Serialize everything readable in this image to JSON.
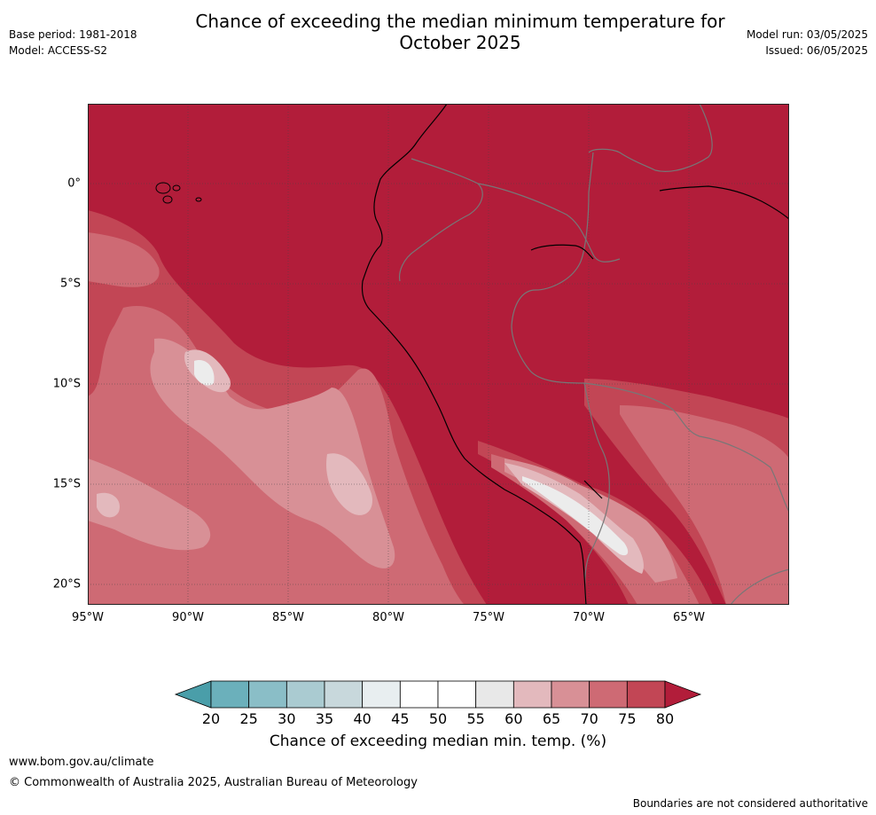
{
  "header": {
    "title_line1": "Chance of exceeding the median minimum temperature for",
    "title_line2": "October 2025",
    "base_period": "Base period: 1981-2018",
    "model": "Model: ACCESS-S2",
    "model_run": "Model run: 03/05/2025",
    "issued": "Issued: 06/05/2025"
  },
  "map": {
    "lat_ticks": [
      "0°",
      "5°S",
      "10°S",
      "15°S",
      "20°S"
    ],
    "lon_ticks": [
      "95°W",
      "90°W",
      "85°W",
      "80°W",
      "75°W",
      "70°W",
      "65°W"
    ],
    "colors": {
      "p80": "#b21d3a",
      "p75": "#c24655",
      "p70": "#ce6a74",
      "p65": "#d89096",
      "p60": "#e3b9bd",
      "p55": "#ececec",
      "land_border": "#777777"
    }
  },
  "colorbar": {
    "ticks": [
      "20",
      "25",
      "30",
      "35",
      "40",
      "45",
      "50",
      "55",
      "60",
      "65",
      "70",
      "75",
      "80"
    ],
    "colors": [
      "#4a9ea9",
      "#6bb0bb",
      "#8abec7",
      "#aacbd1",
      "#c8d8dc",
      "#e8eef0",
      "#ffffff",
      "#ffffff",
      "#e8e8e8",
      "#e3b9bd",
      "#d89096",
      "#ce6a74",
      "#c24655",
      "#b21d3a"
    ],
    "label": "Chance of exceeding median min. temp. (%)"
  },
  "footer": {
    "url": "www.bom.gov.au/climate",
    "copyright": "© Commonwealth of Australia 2025, Australian Bureau of Meteorology",
    "disclaimer": "Boundaries are not considered authoritative"
  }
}
